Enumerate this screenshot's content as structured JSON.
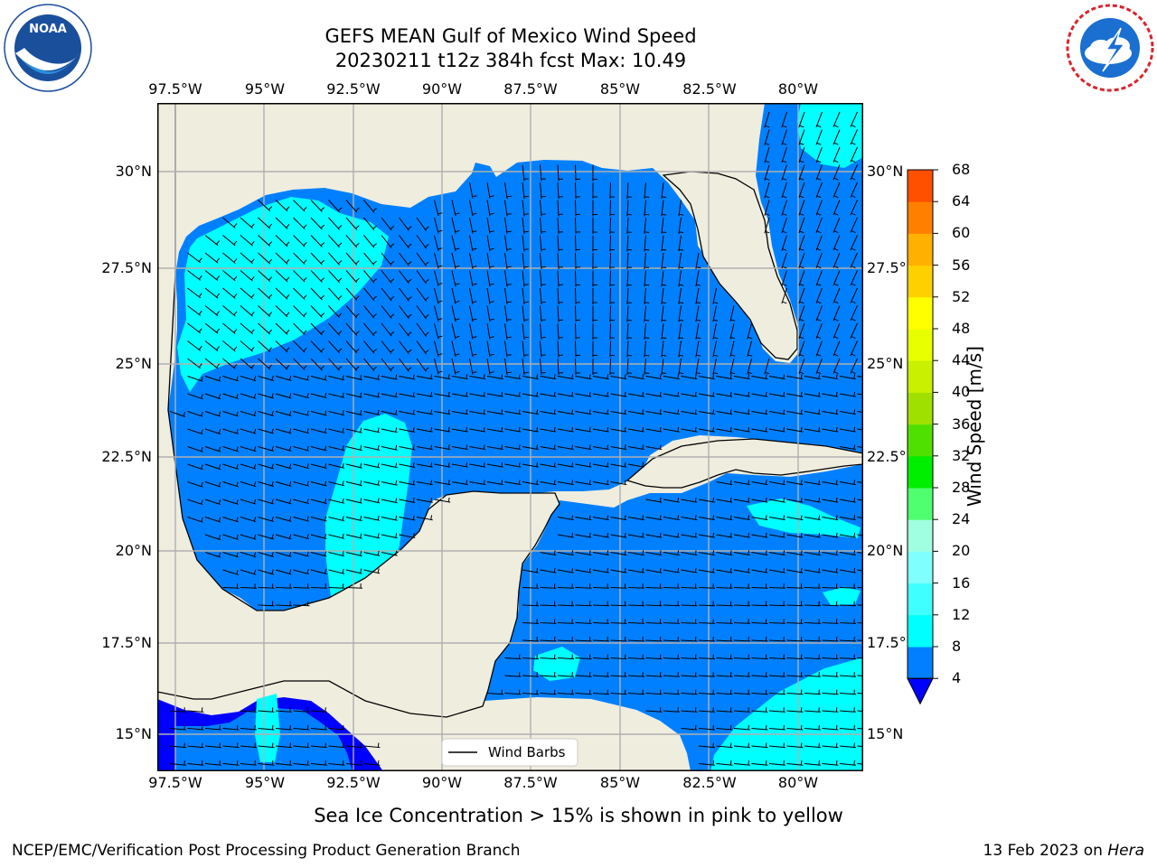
{
  "header": {
    "title_line1": "GEFS MEAN Gulf of Mexico Wind Speed",
    "title_line2": "20230211 t12z 384h fcst   Max: 10.49",
    "noaa_logo": {
      "label": "NOAA",
      "ring_text": "NATIONAL OCEANIC AND ATMOSPHERIC ADMINISTRATION · U.S. DEPARTMENT OF COMMERCE",
      "color": "#1a4f9c"
    },
    "nws_logo": {
      "ring_text": "NATIONAL WEATHER SERVICE",
      "color": "#d8242e"
    }
  },
  "map": {
    "lon_range": [
      -98.5,
      -77.5
    ],
    "lat_range": [
      14,
      31.5
    ],
    "lon_ticks": [
      "97.5°W",
      "95°W",
      "92.5°W",
      "90°W",
      "87.5°W",
      "85°W",
      "82.5°W",
      "80°W"
    ],
    "lat_ticks": [
      "30°N",
      "27.5°N",
      "25°N",
      "22.5°N",
      "20°N",
      "17.5°N",
      "15°N"
    ],
    "lon_tick_values": [
      -97.5,
      -95,
      -92.5,
      -90,
      -87.5,
      -85,
      -82.5,
      -80
    ],
    "lat_tick_values": [
      30,
      27.5,
      25,
      22.5,
      20,
      17.5,
      15
    ],
    "grid": true,
    "land_color": "#efedde",
    "legend_label": "Wind Barbs",
    "legend_placement": "bottom-center"
  },
  "colorbar": {
    "label": "Wind Speed [m/s]",
    "ticks": [
      "4",
      "8",
      "12",
      "16",
      "20",
      "24",
      "28",
      "32",
      "36",
      "40",
      "44",
      "48",
      "52",
      "56",
      "60",
      "64",
      "68"
    ],
    "colors": [
      "#0080ff",
      "#00ffff",
      "#40ffff",
      "#80ffff",
      "#a0ffe0",
      "#50ff70",
      "#00ee00",
      "#50e000",
      "#a0e000",
      "#c8f000",
      "#e8ff00",
      "#ffff00",
      "#ffd000",
      "#ffb000",
      "#ff8000",
      "#ff5000",
      "#ff2000",
      "#ff0000"
    ],
    "under_color": "#0000ff"
  },
  "footer": {
    "caption": "Sea Ice Concentration > 15% is shown in pink to yellow",
    "left": "NCEP/EMC/Verification Post Processing Product Generation Branch",
    "right_date": "13 Feb 2023 on ",
    "right_host": "Hera"
  }
}
